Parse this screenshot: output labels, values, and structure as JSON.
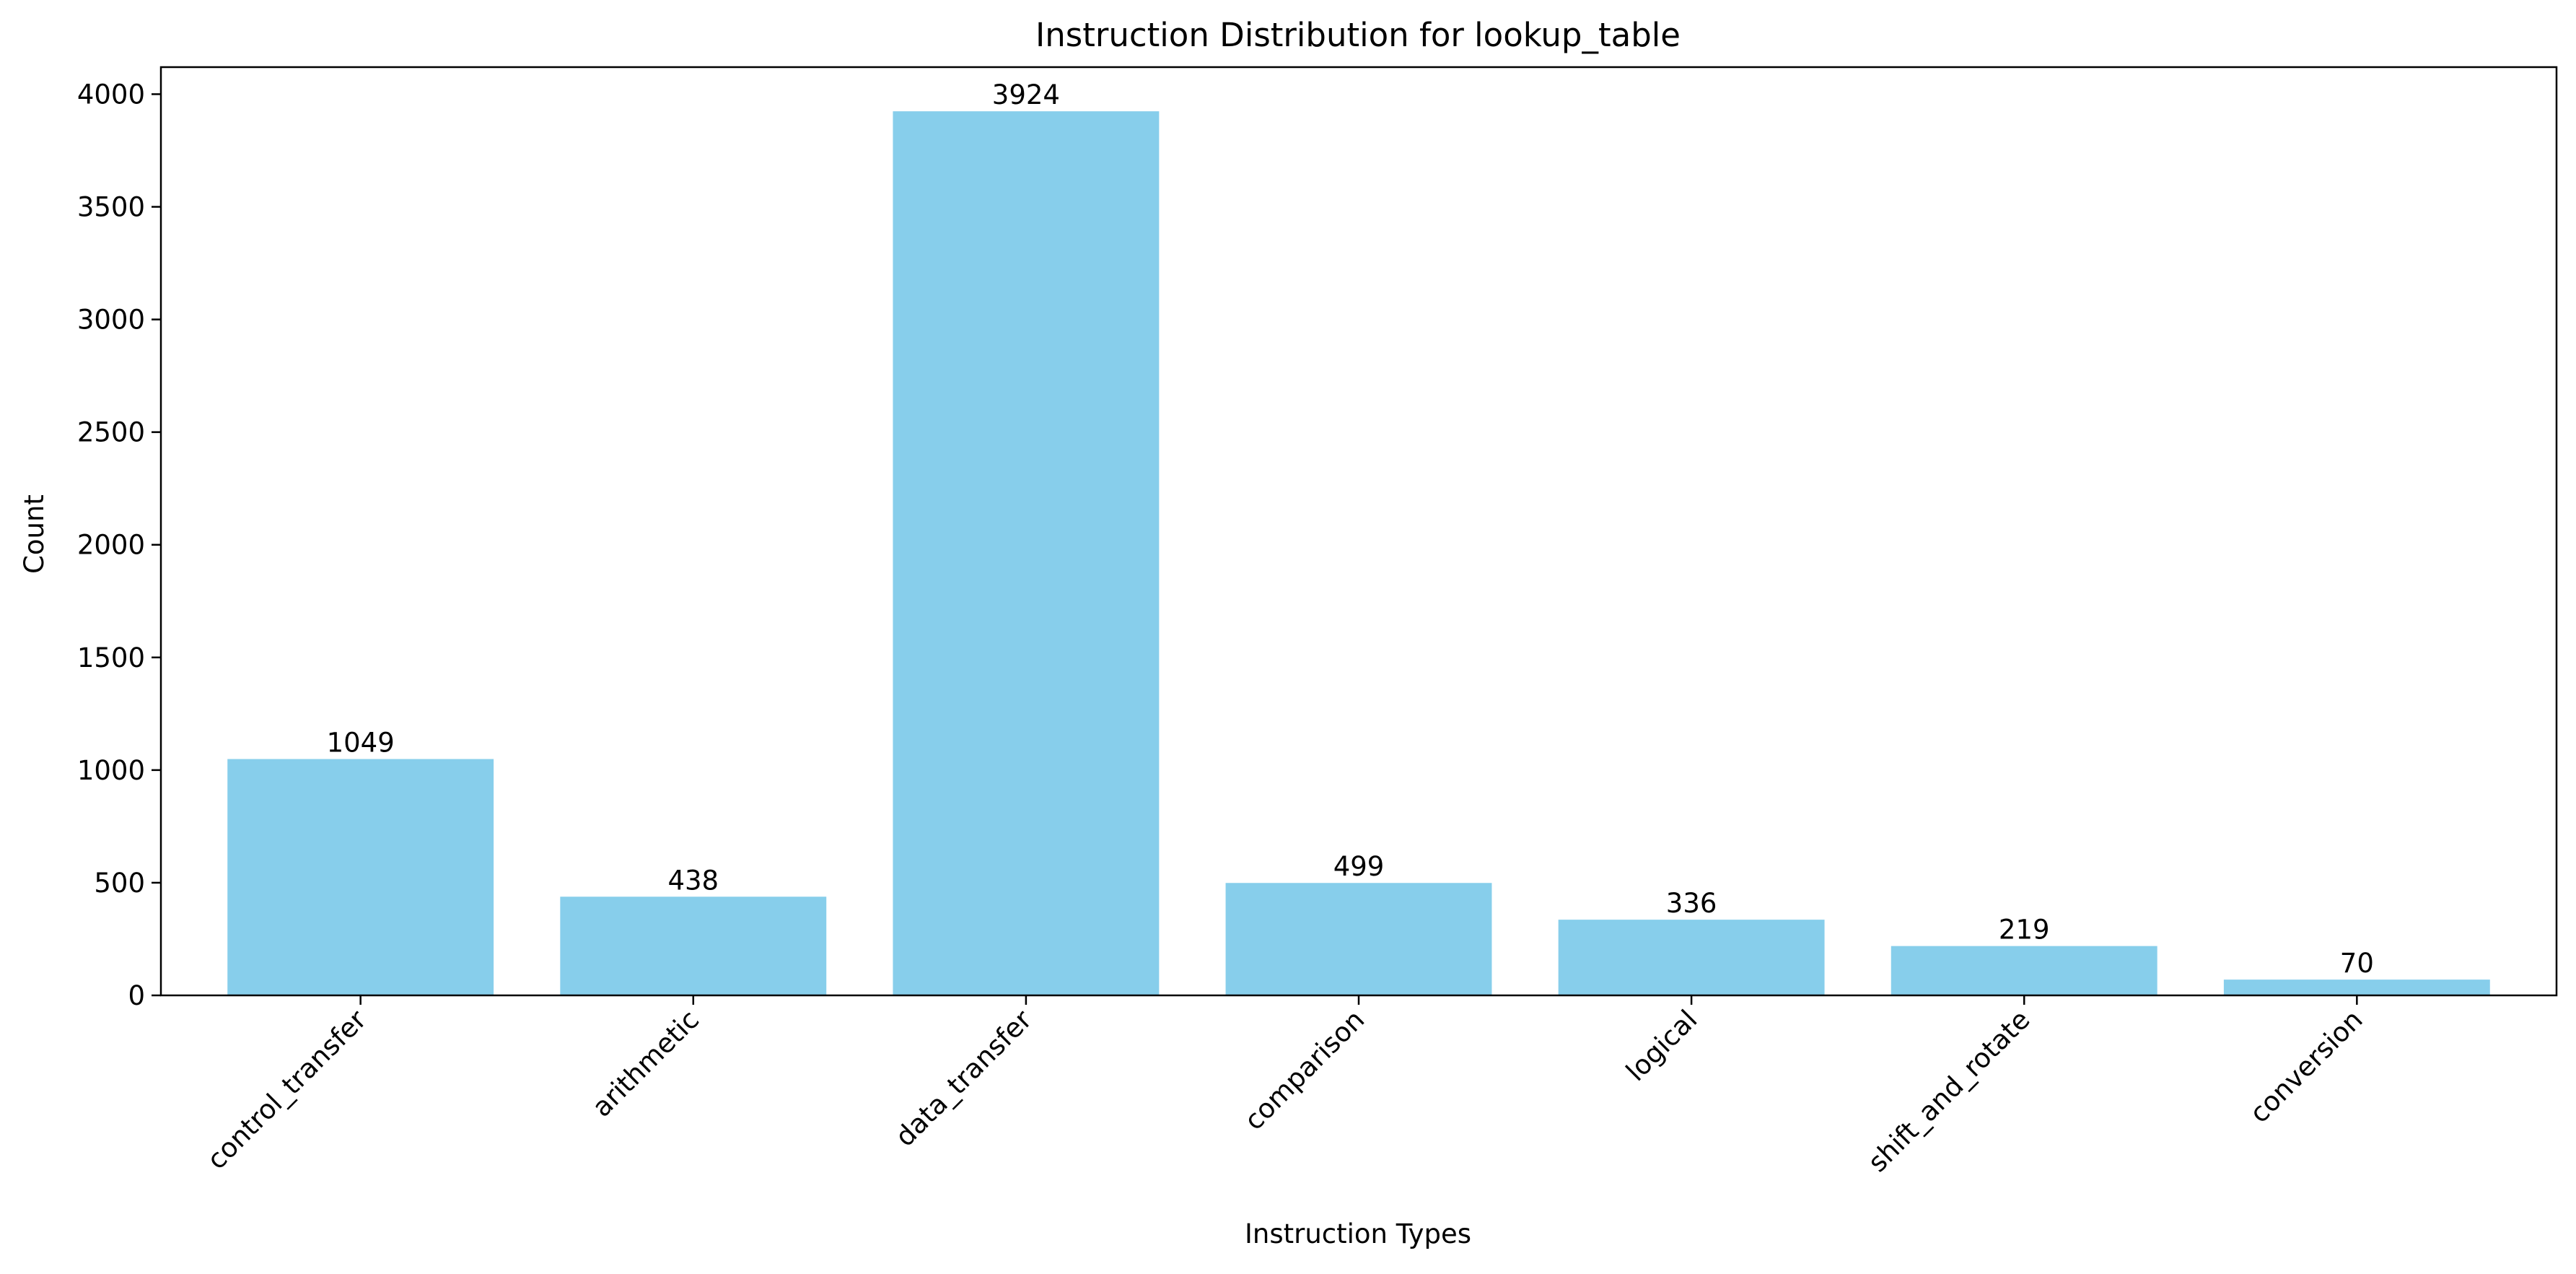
{
  "chart_data": {
    "type": "bar",
    "title": "Instruction Distribution for lookup_table",
    "xlabel": "Instruction Types",
    "ylabel": "Count",
    "categories": [
      "control_transfer",
      "arithmetic",
      "data_transfer",
      "comparison",
      "logical",
      "shift_and_rotate",
      "conversion"
    ],
    "values": [
      1049,
      438,
      3924,
      499,
      336,
      219,
      70
    ],
    "data_labels": [
      "1049",
      "438",
      "3924",
      "499",
      "336",
      "219",
      "70"
    ],
    "yticks": [
      0,
      500,
      1000,
      1500,
      2000,
      2500,
      3000,
      3500,
      4000
    ],
    "ylim": [
      0,
      4120
    ],
    "bar_color": "#87CEEB",
    "grid": false,
    "legend": "none",
    "x_tick_rotation_deg": 45
  }
}
